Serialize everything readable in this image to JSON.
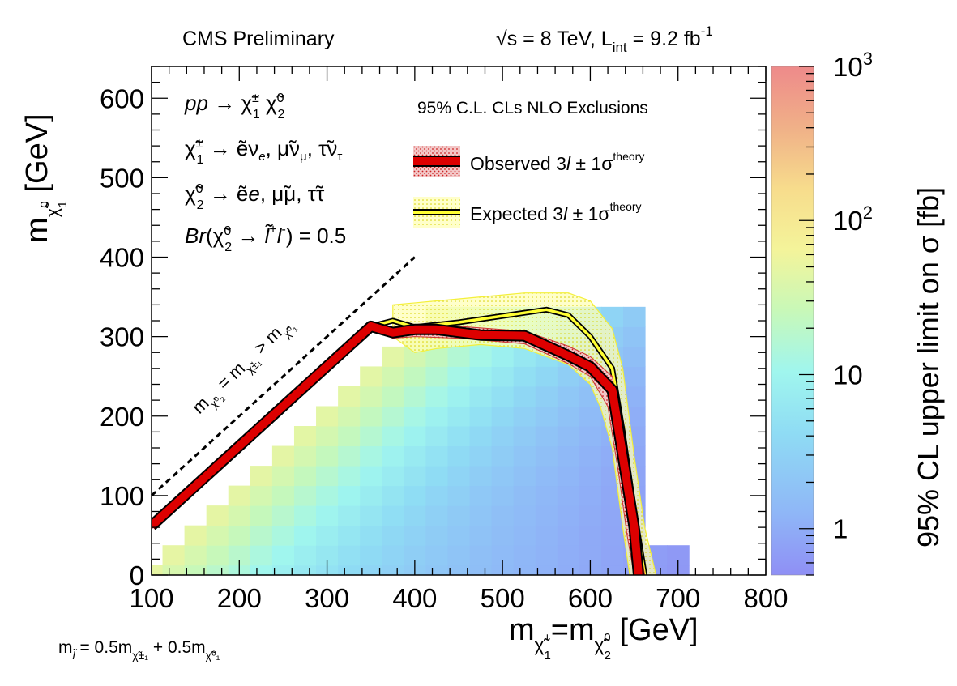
{
  "chart_data": {
    "type": "heatmap",
    "header_left": "CMS Preliminary",
    "header_right": "√s = 8 TeV, L_int = 9.2 fb^-1",
    "header_right_parts": {
      "sqrt_s": "√s = 8 TeV, L",
      "int": "int",
      "lumi": " = 9.2 fb",
      "sup": "-1"
    },
    "xlabel": "m χ̃1± = m χ̃2⁰ [GeV]",
    "ylabel": "m χ̃1⁰ [GeV]",
    "zlabel": "95% CL upper limit on σ [fb]",
    "xlim": [
      100,
      800
    ],
    "ylim": [
      0,
      640
    ],
    "zlim": [
      0.5,
      1000
    ],
    "z_scale": "log",
    "xticks": [
      "100",
      "200",
      "300",
      "400",
      "500",
      "600",
      "700",
      "800"
    ],
    "yticks": [
      "0",
      "100",
      "200",
      "300",
      "400",
      "500",
      "600"
    ],
    "zticks": [
      "1",
      "10",
      "10^2",
      "10^3"
    ],
    "process_lines": [
      "pp → χ̃1± χ̃2⁰",
      "χ̃1± → ẽνe, μ̃νμ, τ̃ντ",
      "χ̃2⁰ → ẽe, μ̃μ, τ̃τ",
      "Br(χ̃2⁰ → l̃⁺l⁻) = 0.5"
    ],
    "diagonal_label": "m χ̃2⁰ = m χ̃1± > m χ̃1⁰",
    "legend_title": "95% C.L. CLs NLO Exclusions",
    "legend_placement": "top-right inside plot",
    "legend": [
      {
        "label": "Observed 3l  ± 1σ^theory",
        "color": "#dd0000",
        "band_color": "#e88080"
      },
      {
        "label": "Expected 3l  ± 1σ^theory",
        "color": "#000000",
        "band_color": "#ffff66"
      }
    ],
    "footnote": "m l̃ = 0.5m χ̃1± + 0.5m χ̃1⁰",
    "observed": {
      "x": [
        100,
        350,
        375,
        400,
        425,
        475,
        525,
        575,
        600,
        625,
        637,
        650,
        655
      ],
      "y": [
        62,
        313,
        305,
        309,
        309,
        302,
        301,
        276,
        262,
        233,
        150,
        60,
        0
      ]
    },
    "observed_band_upper": {
      "x": [
        100,
        350,
        375,
        400,
        450,
        525,
        575,
        600,
        625,
        640,
        652,
        662
      ],
      "y": [
        66,
        317,
        312,
        314,
        313,
        307,
        288,
        275,
        250,
        160,
        70,
        0
      ]
    },
    "observed_band_lower": {
      "x": [
        100,
        350,
        375,
        400,
        450,
        525,
        575,
        600,
        620,
        632,
        642,
        650
      ],
      "y": [
        58,
        309,
        298,
        300,
        298,
        291,
        266,
        250,
        212,
        130,
        50,
        0
      ]
    },
    "expected": {
      "x": [
        350,
        375,
        400,
        450,
        500,
        550,
        575,
        600,
        625,
        637,
        650,
        662
      ],
      "y": [
        313,
        320,
        312,
        318,
        326,
        334,
        327,
        300,
        260,
        180,
        80,
        0
      ]
    },
    "expected_band_upper": {
      "x": [
        375,
        425,
        475,
        525,
        575,
        600,
        625,
        637,
        650,
        662,
        675
      ],
      "y": [
        340,
        345,
        350,
        355,
        355,
        345,
        310,
        260,
        150,
        60,
        0
      ]
    },
    "expected_band_lower": {
      "x": [
        375,
        400,
        425,
        475,
        525,
        575,
        600,
        612,
        625,
        637,
        645
      ],
      "y": [
        300,
        280,
        285,
        290,
        285,
        265,
        240,
        210,
        160,
        60,
        0
      ]
    },
    "diagonal_line": {
      "x": [
        100,
        400
      ],
      "y": [
        100,
        400
      ]
    },
    "grid_step": 25,
    "limit_grid_note": "upper limits on σ (fb) at 25 GeV grid points below the diagonal, decreasing with mass splitting and chargino mass"
  }
}
